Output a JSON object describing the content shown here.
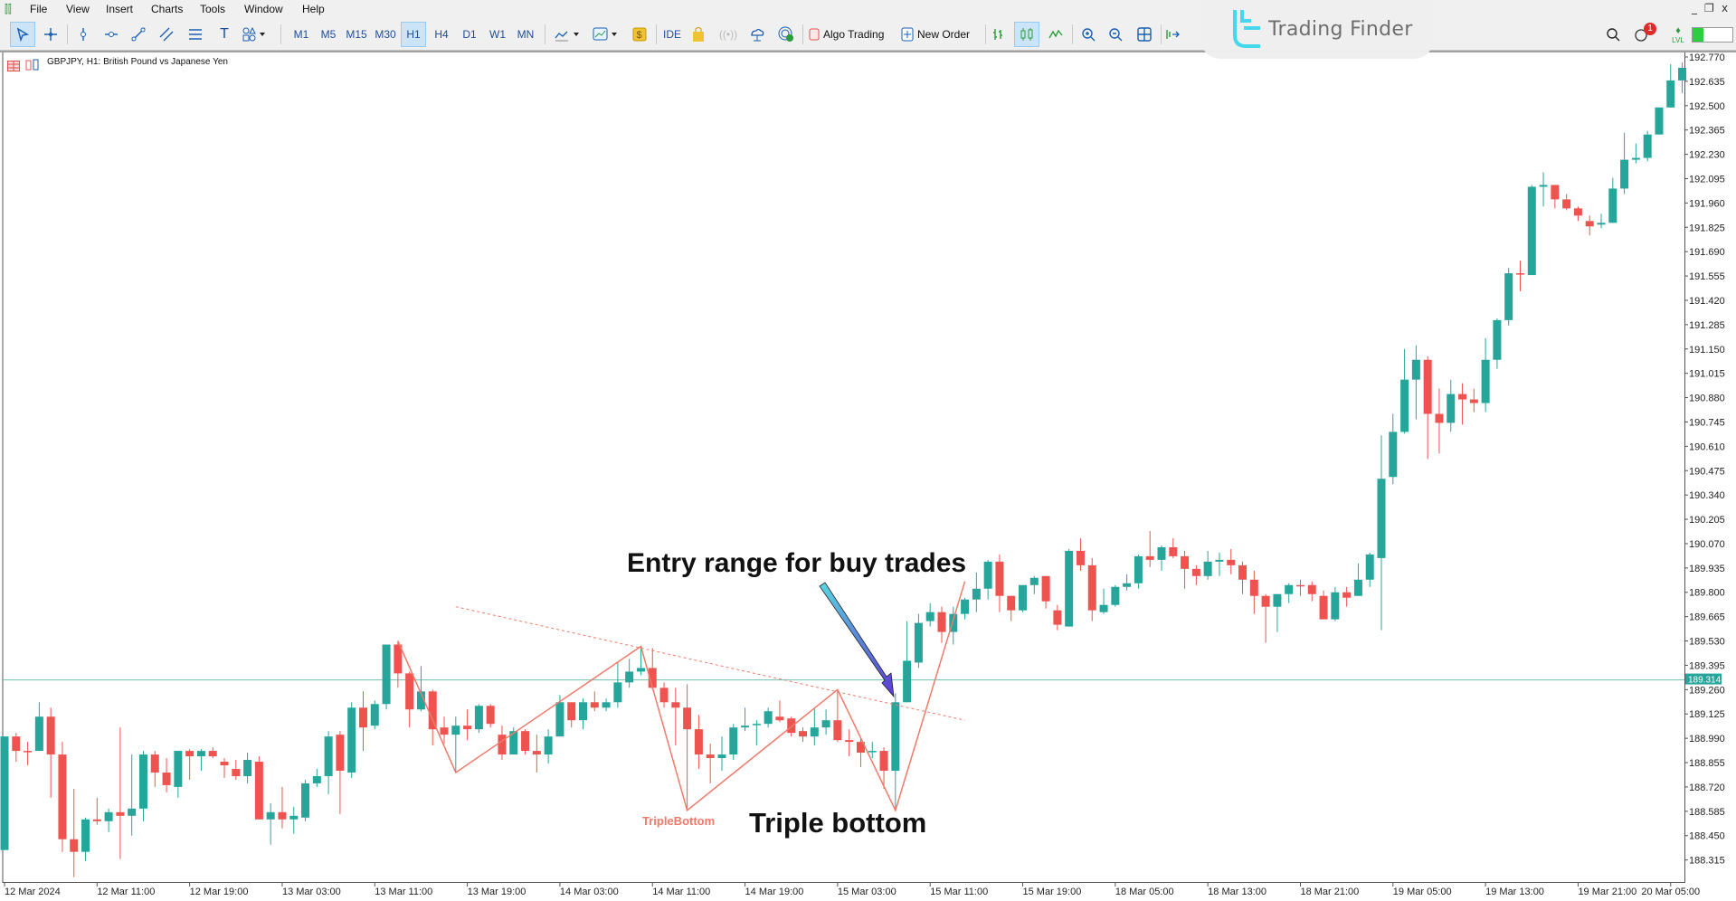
{
  "menu": {
    "items": [
      "File",
      "View",
      "Insert",
      "Charts",
      "Tools",
      "Window",
      "Help"
    ]
  },
  "toolbar": {
    "timeframes": [
      "M1",
      "M5",
      "M15",
      "M30",
      "H1",
      "H4",
      "D1",
      "W1",
      "MN"
    ],
    "active_timeframe": "H1",
    "ide_label": "IDE",
    "algo_trading_label": "Algo Trading",
    "new_order_label": "New Order",
    "notification_count": "1",
    "lvl_label": "LVL",
    "icons": [
      "cursor-icon",
      "crosshair-icon",
      "vertical-line-icon",
      "horizontal-line-icon",
      "trendline-icon",
      "channel-icon",
      "fibonacci-icon",
      "text-icon",
      "shapes-icon",
      "indicator-icon",
      "template-icon",
      "market-icon",
      "ide-icon",
      "bag-icon",
      "signals-icon",
      "vps-icon",
      "radar-icon",
      "algo-trading-icon",
      "new-order-icon",
      "bar-chart-icon",
      "candlestick-icon",
      "line-chart-icon",
      "zoom-in-icon",
      "zoom-out-icon",
      "tile-icon",
      "autoscroll-icon",
      "search-icon",
      "notification-icon",
      "lvl-icon",
      "battery-icon"
    ]
  },
  "window_controls": {
    "minimize": "_",
    "restore": "❐",
    "close": "x"
  },
  "watermark": {
    "text": "Trading Finder"
  },
  "chart": {
    "title": "GBPJPY, H1:  British Pound vs Japanese Yen",
    "current_price": "189.314",
    "colors": {
      "bull": "#26a69a",
      "bear": "#ef5350",
      "price_line": "#6fc0ae",
      "pattern": "#f07a6a",
      "arrow_start": "#5ad6e0",
      "arrow_end": "#5b3bd6"
    },
    "annotations": {
      "entry": "Entry range for buy trades",
      "triple_bottom": "Triple bottom",
      "pattern_label": "TripleBottom"
    }
  },
  "chart_data": {
    "type": "candlestick",
    "symbol": "GBPJPY",
    "timeframe": "H1",
    "ylim": [
      188.22,
      192.79
    ],
    "y_ticks": [
      "192.770",
      "192.635",
      "192.500",
      "192.365",
      "192.230",
      "192.095",
      "191.960",
      "191.825",
      "191.690",
      "191.555",
      "191.420",
      "191.285",
      "191.150",
      "191.015",
      "190.880",
      "190.745",
      "190.610",
      "190.475",
      "190.340",
      "190.205",
      "190.070",
      "189.935",
      "189.800",
      "189.665",
      "189.530",
      "189.395",
      "189.260",
      "189.125",
      "188.990",
      "188.855",
      "188.720",
      "188.585",
      "188.450",
      "188.315"
    ],
    "x_ticks": [
      "12 Mar 2024",
      "12 Mar 11:00",
      "12 Mar 19:00",
      "13 Mar 03:00",
      "13 Mar 11:00",
      "13 Mar 19:00",
      "14 Mar 03:00",
      "14 Mar 11:00",
      "14 Mar 19:00",
      "15 Mar 03:00",
      "15 Mar 11:00",
      "15 Mar 19:00",
      "18 Mar 05:00",
      "18 Mar 13:00",
      "18 Mar 21:00",
      "19 Mar 05:00",
      "19 Mar 13:00",
      "19 Mar 21:00",
      "20 Mar 05:00"
    ],
    "ohlc_format": [
      "open",
      "high",
      "low",
      "close"
    ],
    "candles": [
      [
        188.37,
        189.0,
        188.37,
        189.0
      ],
      [
        189.0,
        189.02,
        188.86,
        188.92
      ],
      [
        188.92,
        188.97,
        188.84,
        188.915
      ],
      [
        188.92,
        189.19,
        188.92,
        189.11
      ],
      [
        189.11,
        189.16,
        188.66,
        188.9
      ],
      [
        188.9,
        188.97,
        188.36,
        188.43
      ],
      [
        188.43,
        188.71,
        188.22,
        188.36
      ],
      [
        188.36,
        188.55,
        188.31,
        188.54
      ],
      [
        188.54,
        188.66,
        188.51,
        188.53
      ],
      [
        188.53,
        188.6,
        188.47,
        188.58
      ],
      [
        188.58,
        189.05,
        188.32,
        188.56
      ],
      [
        188.56,
        188.9,
        188.45,
        188.6
      ],
      [
        188.6,
        188.92,
        188.53,
        188.9
      ],
      [
        188.9,
        188.92,
        188.72,
        188.8
      ],
      [
        188.8,
        188.88,
        188.69,
        188.73
      ],
      [
        188.72,
        188.92,
        188.66,
        188.92
      ],
      [
        188.92,
        188.93,
        188.76,
        188.89
      ],
      [
        188.89,
        188.93,
        188.81,
        188.92
      ],
      [
        188.92,
        188.94,
        188.88,
        188.89
      ],
      [
        188.86,
        188.88,
        188.77,
        188.84
      ],
      [
        188.82,
        188.87,
        188.76,
        188.78
      ],
      [
        188.78,
        188.91,
        188.74,
        188.87
      ],
      [
        188.86,
        188.89,
        188.54,
        188.54
      ],
      [
        188.54,
        188.63,
        188.4,
        188.58
      ],
      [
        188.58,
        188.72,
        188.49,
        188.54
      ],
      [
        188.54,
        188.61,
        188.46,
        188.56
      ],
      [
        188.55,
        188.76,
        188.53,
        188.74
      ],
      [
        188.74,
        188.82,
        188.72,
        188.78
      ],
      [
        188.78,
        189.03,
        188.68,
        189.0
      ],
      [
        189.01,
        189.03,
        188.57,
        188.81
      ],
      [
        188.8,
        189.19,
        188.77,
        189.16
      ],
      [
        189.16,
        189.25,
        188.92,
        189.05
      ],
      [
        189.06,
        189.2,
        189.04,
        189.18
      ],
      [
        189.18,
        189.51,
        189.15,
        189.51
      ],
      [
        189.51,
        189.53,
        189.27,
        189.35
      ],
      [
        189.35,
        189.36,
        189.05,
        189.15
      ],
      [
        189.15,
        189.39,
        189.14,
        189.25
      ],
      [
        189.25,
        189.26,
        188.95,
        189.04
      ],
      [
        189.05,
        189.11,
        188.96,
        189.01
      ],
      [
        189.01,
        189.11,
        188.8,
        189.06
      ],
      [
        189.06,
        189.15,
        188.98,
        189.04
      ],
      [
        189.04,
        189.18,
        189.02,
        189.17
      ],
      [
        189.17,
        189.18,
        189.05,
        189.07
      ],
      [
        189.01,
        189.06,
        188.87,
        188.9
      ],
      [
        188.9,
        189.05,
        188.9,
        189.03
      ],
      [
        189.03,
        189.04,
        188.9,
        188.92
      ],
      [
        188.92,
        189.01,
        188.8,
        188.9
      ],
      [
        188.9,
        189.04,
        188.85,
        189.0
      ],
      [
        189.0,
        189.23,
        189.0,
        189.19
      ],
      [
        189.19,
        189.19,
        189.05,
        189.09
      ],
      [
        189.09,
        189.21,
        189.04,
        189.19
      ],
      [
        189.19,
        189.25,
        189.14,
        189.16
      ],
      [
        189.16,
        189.21,
        189.14,
        189.19
      ],
      [
        189.19,
        189.41,
        189.16,
        189.3
      ],
      [
        189.3,
        189.43,
        189.27,
        189.36
      ],
      [
        189.36,
        189.5,
        189.34,
        189.38
      ],
      [
        189.38,
        189.49,
        189.26,
        189.27
      ],
      [
        189.27,
        189.3,
        189.16,
        189.19
      ],
      [
        189.19,
        189.27,
        188.95,
        189.16
      ],
      [
        189.16,
        189.29,
        188.59,
        189.04
      ],
      [
        189.04,
        189.12,
        188.82,
        188.9
      ],
      [
        188.9,
        188.96,
        188.74,
        188.88
      ],
      [
        188.88,
        189.0,
        188.81,
        188.9
      ],
      [
        188.9,
        189.07,
        188.87,
        189.05
      ],
      [
        189.05,
        189.16,
        189.03,
        189.06
      ],
      [
        189.07,
        189.09,
        188.95,
        189.07
      ],
      [
        189.07,
        189.16,
        189.05,
        189.14
      ],
      [
        189.11,
        189.2,
        189.08,
        189.09
      ],
      [
        189.1,
        189.11,
        189.0,
        189.02
      ],
      [
        189.03,
        189.05,
        188.97,
        189.0
      ],
      [
        189.0,
        189.16,
        188.95,
        189.05
      ],
      [
        189.05,
        189.15,
        189.01,
        189.09
      ],
      [
        189.09,
        189.26,
        188.97,
        188.98
      ],
      [
        188.98,
        189.04,
        188.89,
        188.97
      ],
      [
        188.97,
        188.99,
        188.83,
        188.91
      ],
      [
        188.92,
        188.97,
        188.88,
        188.92
      ],
      [
        188.92,
        188.94,
        188.71,
        188.81
      ],
      [
        188.81,
        189.24,
        188.59,
        189.19
      ],
      [
        189.19,
        189.64,
        189.19,
        189.42
      ],
      [
        189.41,
        189.68,
        189.38,
        189.63
      ],
      [
        189.64,
        189.74,
        189.61,
        189.69
      ],
      [
        189.69,
        189.72,
        189.52,
        189.58
      ],
      [
        189.58,
        189.72,
        189.51,
        189.68
      ],
      [
        189.68,
        189.77,
        189.65,
        189.76
      ],
      [
        189.76,
        189.91,
        189.69,
        189.82
      ],
      [
        189.82,
        189.98,
        189.76,
        189.97
      ],
      [
        189.97,
        190.01,
        189.69,
        189.78
      ],
      [
        189.78,
        189.78,
        189.64,
        189.7
      ],
      [
        189.7,
        189.84,
        189.69,
        189.84
      ],
      [
        189.84,
        189.89,
        189.79,
        189.88
      ],
      [
        189.89,
        189.89,
        189.71,
        189.75
      ],
      [
        189.7,
        189.73,
        189.59,
        189.62
      ],
      [
        189.61,
        190.04,
        189.61,
        190.03
      ],
      [
        190.03,
        190.1,
        189.92,
        189.95
      ],
      [
        189.95,
        189.99,
        189.64,
        189.7
      ],
      [
        189.69,
        189.82,
        189.68,
        189.73
      ],
      [
        189.73,
        189.84,
        189.72,
        189.83
      ],
      [
        189.83,
        189.9,
        189.81,
        189.85
      ],
      [
        189.85,
        190.01,
        189.82,
        190.0
      ],
      [
        190.0,
        190.14,
        189.94,
        189.98
      ],
      [
        189.98,
        190.06,
        189.92,
        190.05
      ],
      [
        190.05,
        190.1,
        189.99,
        190.0
      ],
      [
        190.0,
        190.03,
        189.82,
        189.93
      ],
      [
        189.93,
        189.95,
        189.84,
        189.89
      ],
      [
        189.89,
        190.03,
        189.87,
        189.97
      ],
      [
        189.97,
        190.02,
        189.89,
        189.98
      ],
      [
        189.98,
        190.04,
        189.9,
        189.95
      ],
      [
        189.95,
        189.97,
        189.79,
        189.87
      ],
      [
        189.87,
        189.92,
        189.68,
        189.78
      ],
      [
        189.78,
        189.79,
        189.52,
        189.72
      ],
      [
        189.72,
        189.79,
        189.58,
        189.79
      ],
      [
        189.79,
        189.85,
        189.74,
        189.84
      ],
      [
        189.84,
        189.87,
        189.78,
        189.835
      ],
      [
        189.84,
        189.86,
        189.75,
        189.79
      ],
      [
        189.78,
        189.81,
        189.65,
        189.65
      ],
      [
        189.65,
        189.83,
        189.64,
        189.8
      ],
      [
        189.8,
        189.83,
        189.72,
        189.77
      ],
      [
        189.78,
        189.96,
        189.78,
        189.87
      ],
      [
        189.87,
        190.02,
        189.83,
        190.01
      ],
      [
        189.99,
        190.67,
        189.59,
        190.43
      ],
      [
        190.44,
        190.79,
        190.4,
        190.69
      ],
      [
        190.69,
        191.15,
        190.68,
        190.98
      ],
      [
        190.98,
        191.17,
        190.76,
        191.09
      ],
      [
        191.09,
        191.11,
        190.54,
        190.79
      ],
      [
        190.79,
        190.93,
        190.57,
        190.74
      ],
      [
        190.74,
        190.98,
        190.69,
        190.9
      ],
      [
        190.9,
        190.96,
        190.73,
        190.87
      ],
      [
        190.87,
        190.93,
        190.8,
        190.85
      ],
      [
        190.85,
        191.21,
        190.8,
        191.09
      ],
      [
        191.09,
        191.32,
        191.04,
        191.31
      ],
      [
        191.31,
        191.6,
        191.28,
        191.57
      ],
      [
        191.57,
        191.64,
        191.47,
        191.565
      ],
      [
        191.56,
        192.06,
        191.56,
        192.05
      ],
      [
        192.05,
        192.13,
        191.94,
        192.06
      ],
      [
        192.06,
        192.06,
        191.93,
        191.98
      ],
      [
        191.98,
        192.01,
        191.92,
        191.93
      ],
      [
        191.93,
        191.94,
        191.86,
        191.89
      ],
      [
        191.86,
        191.89,
        191.78,
        191.83
      ],
      [
        191.84,
        191.9,
        191.82,
        191.85
      ],
      [
        191.85,
        192.1,
        191.85,
        192.04
      ],
      [
        192.04,
        192.35,
        192.01,
        192.2
      ],
      [
        192.2,
        192.29,
        192.18,
        192.21
      ],
      [
        192.21,
        192.36,
        192.19,
        192.34
      ],
      [
        192.34,
        192.49,
        192.34,
        192.49
      ],
      [
        192.49,
        192.73,
        192.49,
        192.64
      ],
      [
        192.64,
        192.74,
        192.57,
        192.71
      ]
    ],
    "horizontal_line": 189.314,
    "zigzag": [
      [
        34,
        189.53
      ],
      [
        39,
        188.8
      ],
      [
        55,
        189.5
      ],
      [
        59,
        188.59
      ],
      [
        72,
        189.26
      ],
      [
        77,
        188.59
      ],
      [
        83,
        189.86
      ]
    ],
    "neckline": [
      [
        39,
        189.72
      ],
      [
        83,
        189.09
      ]
    ],
    "grid": false
  }
}
